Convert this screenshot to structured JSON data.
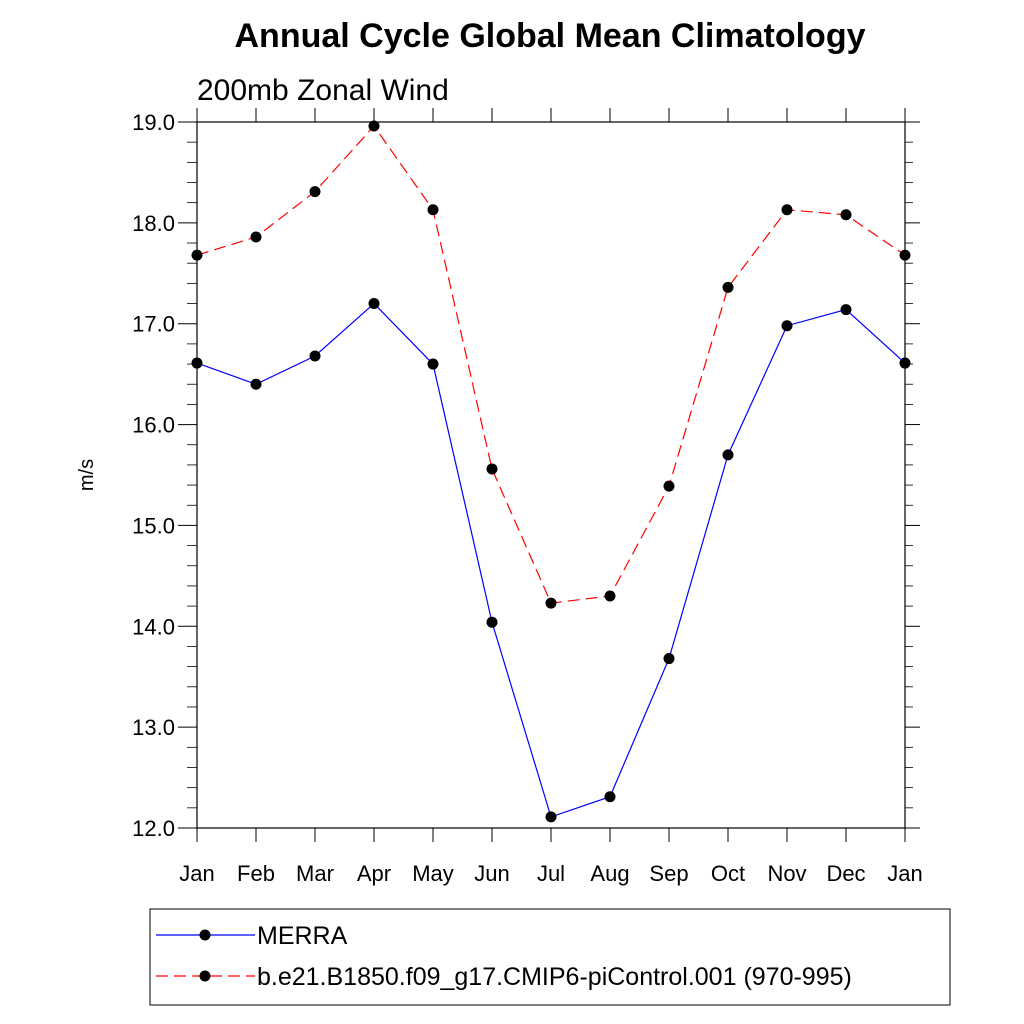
{
  "chart_data": {
    "type": "line",
    "title": "Annual Cycle Global Mean Climatology",
    "subtitle": "200mb Zonal Wind",
    "ylabel": "m/s",
    "xlabel": "",
    "categories": [
      "Jan",
      "Feb",
      "Mar",
      "Apr",
      "May",
      "Jun",
      "Jul",
      "Aug",
      "Sep",
      "Oct",
      "Nov",
      "Dec",
      "Jan"
    ],
    "ylim": [
      12.0,
      19.0
    ],
    "yticks": [
      "12.0",
      "13.0",
      "14.0",
      "15.0",
      "16.0",
      "17.0",
      "18.0",
      "19.0"
    ],
    "grid": false,
    "legend_position": "bottom",
    "series": [
      {
        "name": "MERRA",
        "color": "#0000ff",
        "line_style": "solid",
        "marker": "filled-circle",
        "values": [
          16.61,
          16.4,
          16.68,
          17.2,
          16.6,
          14.04,
          12.11,
          12.31,
          13.68,
          15.7,
          16.98,
          17.14,
          16.61
        ]
      },
      {
        "name": "b.e21.B1850.f09_g17.CMIP6-piControl.001 (970-995)",
        "color": "#ff0000",
        "line_style": "dashed",
        "marker": "filled-circle",
        "values": [
          17.68,
          17.86,
          18.31,
          18.96,
          18.13,
          15.56,
          14.23,
          14.3,
          15.39,
          17.36,
          18.13,
          18.08,
          17.68
        ]
      }
    ]
  }
}
